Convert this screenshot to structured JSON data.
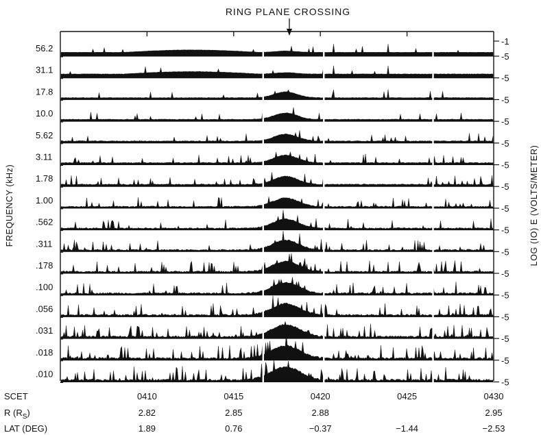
{
  "chart_data": {
    "type": "line",
    "title": "RING PLANE CROSSING",
    "ylabel_left": "FREQUENCY (kHz)",
    "ylabel_right": "LOG (IO) E (VOLTS/METER)",
    "channels": [
      "56.2",
      "31.1",
      "17.8",
      "10.0",
      "5.62",
      "3.11",
      "1.78",
      "1.00",
      ".562",
      ".311",
      ".178",
      ".100",
      ".056",
      ".031",
      ".018",
      ".010"
    ],
    "right_ticks": [
      "-1",
      "-5",
      "-5",
      "-5",
      "-5",
      "-5",
      "-5",
      "-5",
      "-5",
      "-5",
      "-5",
      "-5",
      "-5",
      "-5",
      "-5",
      "-5",
      "-5"
    ],
    "x_axis": {
      "rows": [
        {
          "label": "SCET",
          "values": [
            "0410",
            "0415",
            "0420",
            "0425",
            "0430"
          ]
        },
        {
          "label": "R (RS)",
          "values": [
            "2.82",
            "2.85",
            "2.88",
            "",
            "2.95"
          ]
        },
        {
          "label": "LAT (DEG)",
          "values": [
            "1.89",
            "0.76",
            "-0.37",
            "-1.44",
            "-2.53"
          ]
        }
      ],
      "range": [
        "0405",
        "0430"
      ]
    },
    "peak_time": "0418",
    "data_gaps": [
      "0416.7",
      "0420.2",
      "0426.5"
    ],
    "grid": false,
    "legend": "none"
  }
}
